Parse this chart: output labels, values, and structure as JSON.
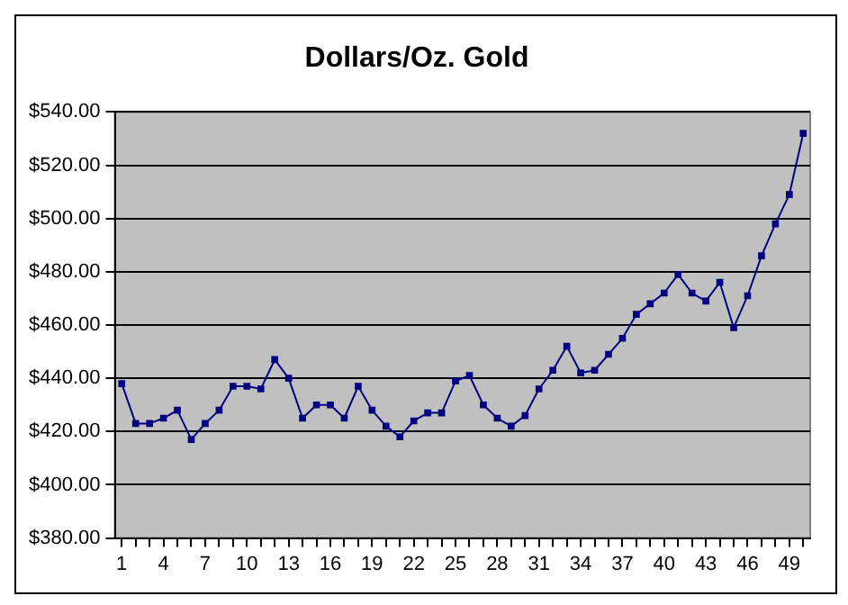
{
  "chart_data": {
    "type": "line",
    "title": "Dollars/Oz. Gold",
    "categories": [
      "1",
      null,
      null,
      "4",
      null,
      null,
      "7",
      null,
      null,
      "10",
      null,
      null,
      "13",
      null,
      null,
      "16",
      null,
      null,
      "19",
      null,
      null,
      "22",
      null,
      null,
      "25",
      null,
      null,
      "28",
      null,
      null,
      "31",
      null,
      null,
      "34",
      null,
      null,
      "37",
      null,
      null,
      "40",
      null,
      null,
      "43",
      null,
      null,
      "46",
      null,
      null,
      "49",
      null
    ],
    "series": [
      {
        "color": "#000080",
        "values": [
          438,
          423,
          423,
          425,
          428,
          417,
          423,
          428,
          437,
          437,
          436,
          447,
          440,
          425,
          430,
          430,
          425,
          437,
          428,
          422,
          418,
          424,
          427,
          427,
          439,
          441,
          430,
          425,
          422,
          426,
          436,
          443,
          452,
          442,
          443,
          449,
          455,
          464,
          468,
          472,
          479,
          472,
          469,
          476,
          459,
          471,
          486,
          498,
          509,
          532
        ]
      }
    ],
    "ylim": [
      380,
      540
    ],
    "yticks": [
      {
        "value": 380,
        "label": "$380.00"
      },
      {
        "value": 400,
        "label": "$400.00"
      },
      {
        "value": 420,
        "label": "$420.00"
      },
      {
        "value": 440,
        "label": "$440.00"
      },
      {
        "value": 460,
        "label": "$460.00"
      },
      {
        "value": 480,
        "label": "$480.00"
      },
      {
        "value": 500,
        "label": "$500.00"
      },
      {
        "value": 520,
        "label": "$520.00"
      },
      {
        "value": 540,
        "label": "$540.00"
      }
    ],
    "grid": "y",
    "legend": false,
    "marker": "square",
    "line_style": "solid"
  }
}
